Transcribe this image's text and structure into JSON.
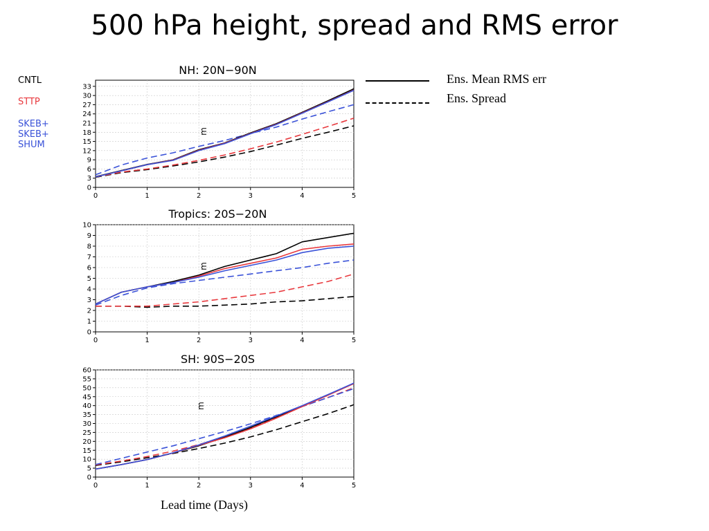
{
  "title": "500 hPa height,  spread and RMS error",
  "legend_models": [
    {
      "label": "CNTL",
      "color": "#000000"
    },
    {
      "label": "STTP",
      "color": "#e8383d"
    },
    {
      "label": "SKEB+\nSKEB+\nSHUM",
      "color": "#3a52d8"
    }
  ],
  "legend_styles": [
    {
      "label": "Ens. Mean RMS err",
      "style": "solid"
    },
    {
      "label": "Ens. Spread",
      "style": "dashed"
    }
  ],
  "xlabel": "Lead time (Days)",
  "chart_data": [
    {
      "type": "line",
      "title": "NH: 20N−90N",
      "ylabel": "m",
      "xlim": [
        0,
        5
      ],
      "ylim": [
        0,
        35
      ],
      "xticks": [
        0,
        1,
        2,
        3,
        4,
        5
      ],
      "yticks": [
        0,
        3,
        6,
        9,
        12,
        15,
        18,
        21,
        24,
        27,
        30,
        33
      ],
      "grid": true,
      "series": [
        {
          "model": "CNTL",
          "kind": "rms",
          "color": "#000000",
          "style": "solid",
          "x": [
            0,
            0.5,
            1,
            1.5,
            2,
            2.5,
            3,
            3.5,
            4,
            4.5,
            5
          ],
          "y": [
            3.5,
            5.5,
            7.5,
            9,
            12.3,
            14.5,
            17.8,
            20.8,
            24.5,
            28.3,
            32.2
          ]
        },
        {
          "model": "STTP",
          "kind": "rms",
          "color": "#e8383d",
          "style": "solid",
          "x": [
            0,
            0.5,
            1,
            1.5,
            2,
            2.5,
            3,
            3.5,
            4,
            4.5,
            5
          ],
          "y": [
            3.4,
            5.4,
            7.4,
            8.9,
            12.1,
            14.4,
            17.6,
            20.6,
            24.3,
            28.0,
            31.8
          ]
        },
        {
          "model": "SKEB+SKEB+SHUM",
          "kind": "rms",
          "color": "#3a52d8",
          "style": "solid",
          "x": [
            0,
            0.5,
            1,
            1.5,
            2,
            2.5,
            3,
            3.5,
            4,
            4.5,
            5
          ],
          "y": [
            3.4,
            5.4,
            7.4,
            8.8,
            12.0,
            14.3,
            17.5,
            20.5,
            24.2,
            27.9,
            31.7
          ]
        },
        {
          "model": "CNTL",
          "kind": "spread",
          "color": "#000000",
          "style": "dashed",
          "x": [
            0,
            0.5,
            1,
            1.5,
            2,
            2.5,
            3,
            3.5,
            4,
            4.5,
            5
          ],
          "y": [
            3.3,
            4.8,
            5.8,
            7.0,
            8.3,
            9.9,
            11.7,
            13.8,
            16.0,
            18.0,
            20.1
          ]
        },
        {
          "model": "STTP",
          "kind": "spread",
          "color": "#e8383d",
          "style": "dashed",
          "x": [
            0,
            0.5,
            1,
            1.5,
            2,
            2.5,
            3,
            3.5,
            4,
            4.5,
            5
          ],
          "y": [
            3.4,
            5.0,
            6.0,
            7.3,
            8.8,
            10.6,
            12.6,
            14.8,
            17.3,
            19.9,
            22.6
          ]
        },
        {
          "model": "SKEB+SKEB+SHUM",
          "kind": "spread",
          "color": "#3a52d8",
          "style": "dashed",
          "x": [
            0,
            0.5,
            1,
            1.5,
            2,
            2.5,
            3,
            3.5,
            4,
            4.5,
            5
          ],
          "y": [
            4.1,
            7.3,
            9.6,
            11.3,
            13.4,
            15.3,
            17.6,
            19.7,
            22.3,
            24.7,
            27.0
          ]
        }
      ]
    },
    {
      "type": "line",
      "title": "Tropics: 20S−20N",
      "ylabel": "m",
      "xlim": [
        0,
        5
      ],
      "ylim": [
        0,
        10
      ],
      "xticks": [
        0,
        1,
        2,
        3,
        4,
        5
      ],
      "yticks": [
        0,
        1,
        2,
        3,
        4,
        5,
        6,
        7,
        8,
        9,
        10
      ],
      "grid": true,
      "series": [
        {
          "model": "CNTL",
          "kind": "rms",
          "color": "#000000",
          "style": "solid",
          "x": [
            0,
            0.5,
            1,
            1.5,
            2,
            2.5,
            3,
            3.5,
            4,
            4.5,
            5
          ],
          "y": [
            2.6,
            3.7,
            4.2,
            4.7,
            5.3,
            6.1,
            6.7,
            7.3,
            8.4,
            8.8,
            9.2
          ]
        },
        {
          "model": "STTP",
          "kind": "rms",
          "color": "#e8383d",
          "style": "solid",
          "x": [
            0,
            0.5,
            1,
            1.5,
            2,
            2.5,
            3,
            3.5,
            4,
            4.5,
            5
          ],
          "y": [
            2.6,
            3.7,
            4.2,
            4.6,
            5.2,
            5.9,
            6.4,
            6.9,
            7.7,
            8.0,
            8.2
          ]
        },
        {
          "model": "SKEB+SKEB+SHUM",
          "kind": "rms",
          "color": "#3a52d8",
          "style": "solid",
          "x": [
            0,
            0.5,
            1,
            1.5,
            2,
            2.5,
            3,
            3.5,
            4,
            4.5,
            5
          ],
          "y": [
            2.6,
            3.7,
            4.2,
            4.6,
            5.1,
            5.7,
            6.2,
            6.7,
            7.4,
            7.8,
            8.0
          ]
        },
        {
          "model": "CNTL",
          "kind": "spread",
          "color": "#000000",
          "style": "dashed",
          "x": [
            0,
            0.5,
            1,
            1.5,
            2,
            2.5,
            3,
            3.5,
            4,
            4.5,
            5
          ],
          "y": [
            2.4,
            2.4,
            2.3,
            2.4,
            2.4,
            2.5,
            2.6,
            2.8,
            2.9,
            3.1,
            3.3
          ]
        },
        {
          "model": "STTP",
          "kind": "spread",
          "color": "#e8383d",
          "style": "dashed",
          "x": [
            0,
            0.5,
            1,
            1.5,
            2,
            2.5,
            3,
            3.5,
            4,
            4.5,
            5
          ],
          "y": [
            2.4,
            2.4,
            2.4,
            2.6,
            2.8,
            3.1,
            3.4,
            3.7,
            4.2,
            4.7,
            5.4
          ]
        },
        {
          "model": "SKEB+SKEB+SHUM",
          "kind": "spread",
          "color": "#3a52d8",
          "style": "dashed",
          "x": [
            0,
            0.5,
            1,
            1.5,
            2,
            2.5,
            3,
            3.5,
            4,
            4.5,
            5
          ],
          "y": [
            2.5,
            3.4,
            4.1,
            4.5,
            4.8,
            5.1,
            5.4,
            5.7,
            6.0,
            6.4,
            6.7
          ]
        }
      ]
    },
    {
      "type": "line",
      "title": "SH: 90S−20S",
      "ylabel": "m",
      "xlim": [
        0,
        5
      ],
      "ylim": [
        0,
        60
      ],
      "xticks": [
        0,
        1,
        2,
        3,
        4,
        5
      ],
      "yticks": [
        0,
        5,
        10,
        15,
        20,
        25,
        30,
        35,
        40,
        45,
        50,
        55,
        60
      ],
      "grid": true,
      "series": [
        {
          "model": "CNTL",
          "kind": "rms",
          "color": "#000000",
          "style": "solid",
          "x": [
            0,
            0.5,
            1,
            1.5,
            2,
            2.5,
            3,
            3.5,
            4,
            4.5,
            5
          ],
          "y": [
            4.5,
            7.0,
            9.8,
            13.5,
            17.5,
            22.3,
            27.8,
            33.8,
            39.8,
            46.0,
            52.5
          ]
        },
        {
          "model": "STTP",
          "kind": "rms",
          "color": "#e8383d",
          "style": "solid",
          "x": [
            0,
            0.5,
            1,
            1.5,
            2,
            2.5,
            3,
            3.5,
            4,
            4.5,
            5
          ],
          "y": [
            4.5,
            7.0,
            9.8,
            13.5,
            17.8,
            22.0,
            27.0,
            33.0,
            39.5,
            45.8,
            52.3
          ]
        },
        {
          "model": "SKEB+SKEB+SHUM",
          "kind": "rms",
          "color": "#3a52d8",
          "style": "solid",
          "x": [
            0,
            0.5,
            1,
            1.5,
            2,
            2.5,
            3,
            3.5,
            4,
            4.5,
            5
          ],
          "y": [
            4.5,
            7.0,
            9.8,
            13.6,
            18.0,
            23.0,
            28.5,
            34.2,
            40.0,
            46.2,
            52.6
          ]
        },
        {
          "model": "CNTL",
          "kind": "spread",
          "color": "#000000",
          "style": "dashed",
          "x": [
            0,
            0.5,
            1,
            1.5,
            2,
            2.5,
            3,
            3.5,
            4,
            4.5,
            5
          ],
          "y": [
            6.5,
            8.5,
            10.8,
            13.2,
            16.0,
            19.0,
            22.5,
            26.5,
            31.0,
            35.5,
            40.5
          ]
        },
        {
          "model": "STTP",
          "kind": "spread",
          "color": "#e8383d",
          "style": "dashed",
          "x": [
            0,
            0.5,
            1,
            1.5,
            2,
            2.5,
            3,
            3.5,
            4,
            4.5,
            5
          ],
          "y": [
            6.8,
            9.0,
            11.5,
            14.5,
            18.2,
            22.5,
            27.5,
            33.2,
            39.5,
            44.5,
            50.0
          ]
        },
        {
          "model": "SKEB+SKEB+SHUM",
          "kind": "spread",
          "color": "#3a52d8",
          "style": "dashed",
          "x": [
            0,
            0.5,
            1,
            1.5,
            2,
            2.5,
            3,
            3.5,
            4,
            4.5,
            5
          ],
          "y": [
            7.0,
            10.5,
            14.0,
            17.5,
            21.5,
            25.5,
            29.8,
            34.5,
            39.5,
            44.5,
            49.5
          ]
        }
      ]
    }
  ]
}
